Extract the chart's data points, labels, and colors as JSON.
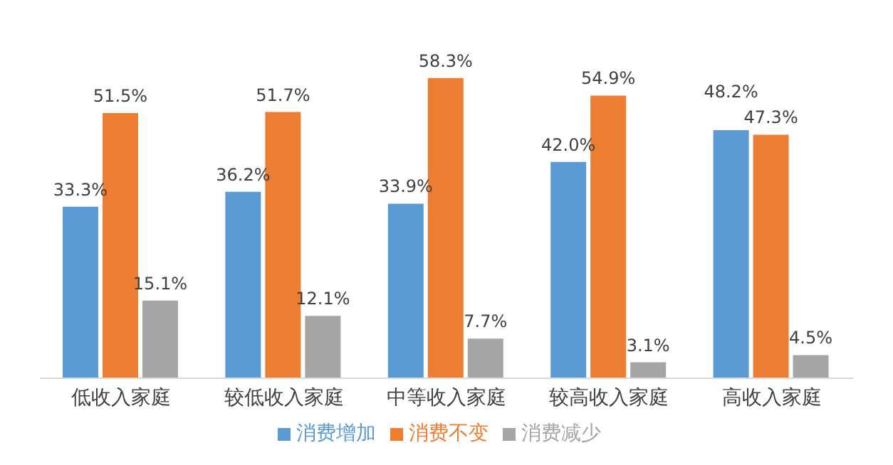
{
  "chart_data": {
    "type": "bar",
    "categories": [
      "低收入家庭",
      "较低收入家庭",
      "中等收入家庭",
      "较高收入家庭",
      "高收入家庭"
    ],
    "series": [
      {
        "name": "消费增加",
        "color": "#5b9bd5",
        "values": [
          33.3,
          36.2,
          33.9,
          42.0,
          48.2
        ],
        "value_labels": [
          "33.3%",
          "36.2%",
          "33.9%",
          "42.0%",
          "48.2%"
        ]
      },
      {
        "name": "消费不变",
        "color": "#ed7d31",
        "values": [
          51.5,
          51.7,
          58.3,
          54.9,
          47.3
        ],
        "value_labels": [
          "51.5%",
          "51.7%",
          "58.3%",
          "54.9%",
          "47.3%"
        ]
      },
      {
        "name": "消费减少",
        "color": "#a5a5a5",
        "values": [
          15.1,
          12.1,
          7.7,
          3.1,
          4.5
        ],
        "value_labels": [
          "15.1%",
          "12.1%",
          "7.7%",
          "3.1%",
          "4.5%"
        ]
      }
    ],
    "grid": false,
    "legend": "bottom",
    "tick_labels": "x"
  }
}
